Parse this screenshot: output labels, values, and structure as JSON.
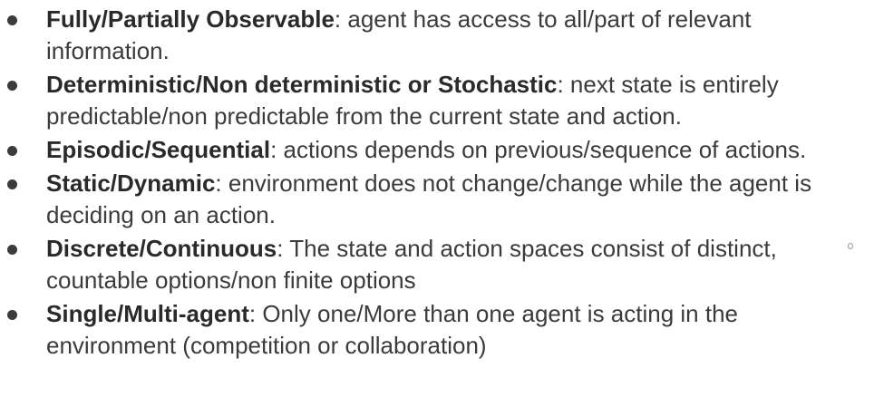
{
  "items": [
    {
      "term": "Fully/Partially Observable",
      "description": ": agent has access to all/part of relevant information."
    },
    {
      "term": "Deterministic/Non deterministic or Stochastic",
      "description": ": next state is entirely predictable/non predictable from the current state and action."
    },
    {
      "term": "Episodic/Sequential",
      "description": ": actions depends on previous/sequence of actions."
    },
    {
      "term": "Static/Dynamic",
      "description": ": environment does not change/change while the agent is deciding on an action."
    },
    {
      "term": "Discrete/Continuous",
      "description": ": The state and action spaces consist of distinct, countable options/non finite options"
    },
    {
      "term": "Single/Multi-agent",
      "description": ": Only one/More than one agent is acting in the environment (competition or collaboration)"
    }
  ]
}
